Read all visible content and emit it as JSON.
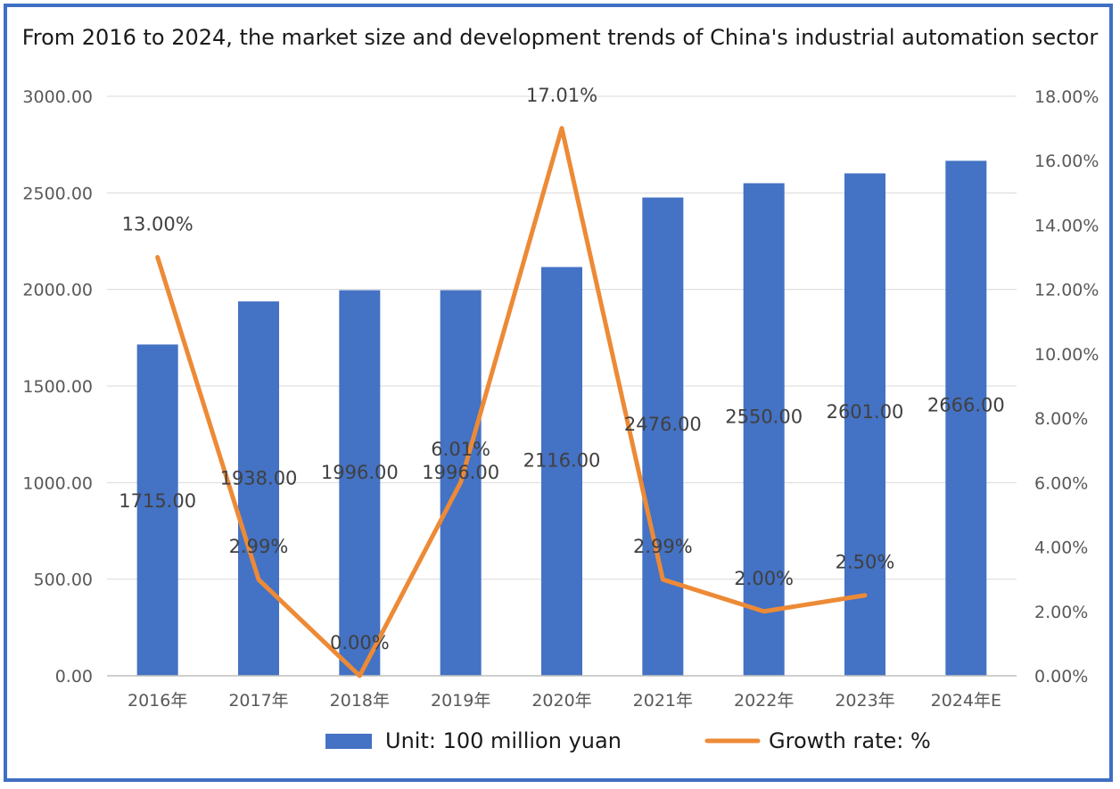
{
  "chart_data": {
    "type": "bar",
    "title": "From 2016 to 2024, the market size and development trends of China's industrial automation sector",
    "categories": [
      "2016年",
      "2017年",
      "2018年",
      "2019年",
      "2020年",
      "2021年",
      "2022年",
      "2023年",
      "2024年E"
    ],
    "series": [
      {
        "name": "Unit: 100 million yuan",
        "type": "bar",
        "axis": "left",
        "color": "#4472c4",
        "values": [
          1715.0,
          1938.0,
          1996.0,
          1996.0,
          2116.0,
          2476.0,
          2550.0,
          2601.0,
          2666.0
        ],
        "labels": [
          "1715.00",
          "1938.00",
          "1996.00",
          "1996.00",
          "2116.00",
          "2476.00",
          "2550.00",
          "2601.00",
          "2666.00"
        ]
      },
      {
        "name": "Growth rate: %",
        "type": "line",
        "axis": "right",
        "color": "#ed8a36",
        "values": [
          13.0,
          2.99,
          0.0,
          6.01,
          17.01,
          2.99,
          2.0,
          2.5,
          null
        ],
        "labels": [
          "13.00%",
          "2.99%",
          "0.00%",
          "6.01%",
          "17.01%",
          "2.99%",
          "2.00%",
          "2.50%",
          ""
        ]
      }
    ],
    "left_axis": {
      "ylim": [
        0,
        3000
      ],
      "ticks": [
        "0.00",
        "500.00",
        "1000.00",
        "1500.00",
        "2000.00",
        "2500.00",
        "3000.00"
      ]
    },
    "right_axis": {
      "ylim": [
        0,
        18
      ],
      "ticks": [
        "0.00%",
        "2.00%",
        "4.00%",
        "6.00%",
        "8.00%",
        "10.00%",
        "12.00%",
        "14.00%",
        "16.00%",
        "18.00%"
      ]
    },
    "grid": true,
    "legend": "bottom"
  }
}
